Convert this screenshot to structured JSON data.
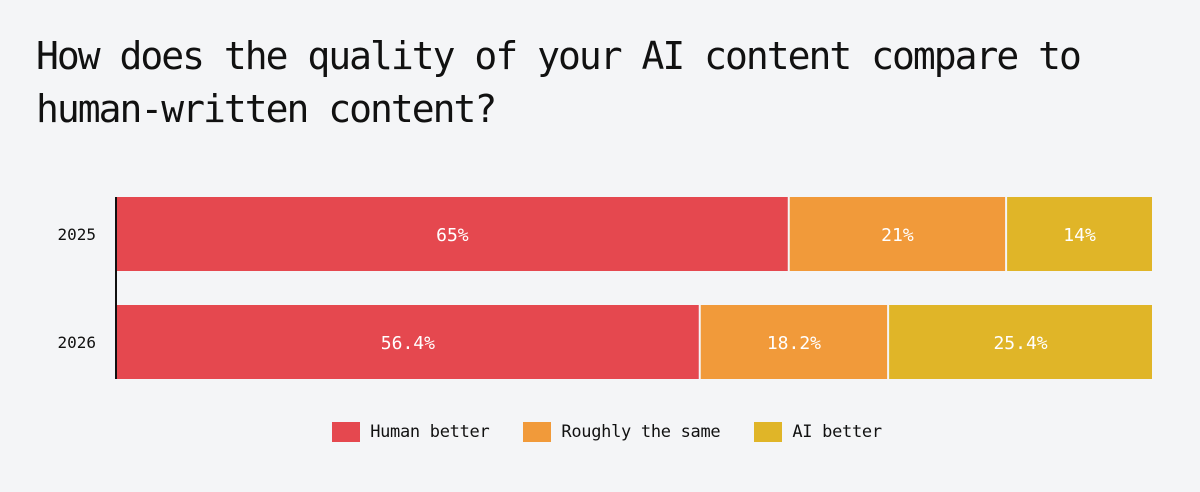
{
  "title": "How does the quality of your AI content compare to human-written content?",
  "chart_data": {
    "type": "bar",
    "orientation": "horizontal",
    "stacked": true,
    "categories": [
      "2025",
      "2026"
    ],
    "series": [
      {
        "name": "Human better",
        "color": "#e5484f",
        "values": [
          65,
          56.4
        ],
        "labels": [
          "65%",
          "56.4%"
        ]
      },
      {
        "name": "Roughly the same",
        "color": "#f19a3a",
        "values": [
          21,
          18.2
        ],
        "labels": [
          "21%",
          "18.2%"
        ]
      },
      {
        "name": "AI better",
        "color": "#e0b528",
        "values": [
          14,
          25.4
        ],
        "labels": [
          "14%",
          "25.4%"
        ]
      }
    ],
    "xlim": [
      0,
      100
    ],
    "grid": false,
    "legend_position": "bottom"
  }
}
